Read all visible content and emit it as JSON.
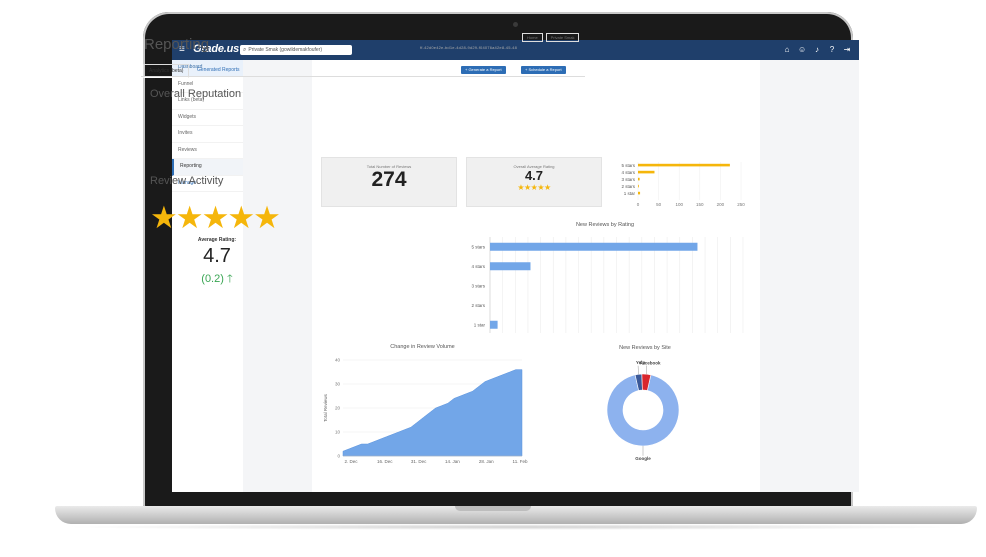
{
  "topbar": {
    "logo": "Grade.us",
    "search_text": "Private Smak (gowildemakfoufer)"
  },
  "sidebar": {
    "items": [
      {
        "label": "Dashboard"
      },
      {
        "label": "Funnel"
      },
      {
        "label": "Links (beta)"
      },
      {
        "label": "Widgets"
      },
      {
        "label": "Invites"
      },
      {
        "label": "Reviews"
      },
      {
        "label": "Reporting"
      },
      {
        "label": "Manage"
      }
    ]
  },
  "page": {
    "title": "Reporting",
    "breadcrumbs": [
      "Home",
      "Private Smak"
    ],
    "subtitle_id": "ff-42d0e42e-bd1e-4d28-9d29-f04076a42e8-45-48",
    "tabs": [
      "Analytics (beta)",
      "Generated Reports"
    ],
    "buttons": {
      "generate": "+ Generate a Report",
      "schedule": "+ Schedule a Report"
    }
  },
  "overall": {
    "heading": "Overall Reputation",
    "total_label": "Total Number of Reviews",
    "total_value": "274",
    "avg_label": "Overall Average Rating",
    "avg_value": "4.7",
    "stars_display": "★★★★★"
  },
  "activity": {
    "heading": "Review Activity",
    "stars_display": "★★★★★",
    "avg_label": "Average Rating:",
    "avg_value": "4.7",
    "delta": "(0.2)",
    "delta_arrow": "🡑"
  },
  "colors": {
    "nav": "#1f3f6b",
    "accent": "#2d6db5",
    "bar_orange": "#f5b60b",
    "bar_blue": "#72a6e8",
    "pie_google": "#8db2ee",
    "pie_yelp": "#d9272d",
    "pie_facebook": "#3b5998",
    "positive": "#3aa654"
  },
  "chart_data": [
    {
      "type": "bar",
      "orientation": "horizontal",
      "title": "",
      "categories": [
        "5 stars",
        "4 stars",
        "3 stars",
        "2 stars",
        "1 star"
      ],
      "values": [
        223,
        40,
        4,
        2,
        5
      ],
      "xticks": [
        "0",
        "50",
        "100",
        "150",
        "200",
        "250"
      ],
      "xlim": [
        0,
        250
      ]
    },
    {
      "type": "bar",
      "orientation": "horizontal",
      "title": "New Reviews by Rating",
      "categories": [
        "5 stars",
        "4 stars",
        "3 stars",
        "2 stars",
        "1 star"
      ],
      "values": [
        8.2,
        1.6,
        0,
        0,
        0.3
      ],
      "xlim": [
        0,
        10
      ]
    },
    {
      "type": "area",
      "title": "Change in Review Volume",
      "ylabel": "Total Reviews",
      "ylim": [
        0,
        40
      ],
      "yticks": [
        "0",
        "10",
        "20",
        "30",
        "40"
      ],
      "xticks": [
        "2. Dec",
        "16. Dec",
        "31. Dec",
        "14. Jan",
        "28. Jan",
        "11. Feb"
      ],
      "values": [
        2,
        3,
        4,
        5,
        5,
        6,
        7,
        8,
        9,
        10,
        11,
        12,
        14,
        16,
        18,
        20,
        21,
        22,
        24,
        25,
        26,
        27,
        29,
        31,
        32,
        33,
        34,
        35,
        36,
        36
      ]
    },
    {
      "type": "pie",
      "title": "New Reviews by Site",
      "labels": [
        "Google",
        "Yelp",
        "Facebook"
      ],
      "values": [
        93,
        4,
        3
      ]
    }
  ]
}
